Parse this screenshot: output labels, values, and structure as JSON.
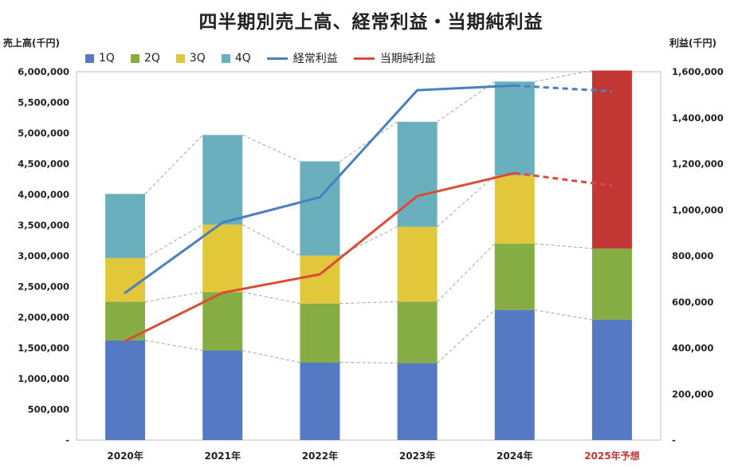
{
  "chart_data": {
    "type": "bar",
    "title": "四半期別売上高、経常利益・当期純利益",
    "ylabel_left": "売上高(千円)",
    "ylabel_right": "利益(千円)",
    "categories": [
      "2020年",
      "2021年",
      "2022年",
      "2023年",
      "2024年",
      "2025年予想"
    ],
    "stacked": true,
    "ylim_left": [
      0,
      6000000
    ],
    "yticks_left": [
      "-",
      "500,000",
      "1,000,000",
      "1,500,000",
      "2,000,000",
      "2,500,000",
      "3,000,000",
      "3,500,000",
      "4,000,000",
      "4,500,000",
      "5,000,000",
      "5,500,000",
      "6,000,000"
    ],
    "ylim_right": [
      0,
      1600000
    ],
    "yticks_right": [
      "-",
      "200,000",
      "400,000",
      "600,000",
      "800,000",
      "1,000,000",
      "1,200,000",
      "1,400,000",
      "1,600,000"
    ],
    "series": [
      {
        "name": "1Q",
        "type": "bar",
        "color": "#5579c2",
        "values": [
          1625000,
          1460000,
          1265000,
          1255000,
          2120000,
          1960000
        ]
      },
      {
        "name": "2Q",
        "type": "bar",
        "color": "#85ad44",
        "values": [
          630000,
          950000,
          960000,
          1000000,
          1080000,
          1160000
        ]
      },
      {
        "name": "3Q",
        "type": "bar",
        "color": "#e3c73a",
        "values": [
          710000,
          1100000,
          780000,
          1220000,
          1110000,
          null
        ]
      },
      {
        "name": "4Q",
        "type": "bar",
        "color": "#6aafbd",
        "values": [
          1045000,
          1460000,
          1535000,
          1710000,
          1530000,
          null
        ]
      },
      {
        "name": "経常利益",
        "type": "line",
        "axis": "right",
        "color": "#4a7fc0",
        "values": [
          640000,
          945000,
          1055000,
          1520000,
          1540000,
          1515000
        ],
        "dashed_last_segment": true
      },
      {
        "name": "当期純利益",
        "type": "line",
        "axis": "right",
        "color": "#dc4b35",
        "values": [
          430000,
          640000,
          720000,
          1060000,
          1160000,
          1105000
        ],
        "dashed_last_segment": true
      }
    ],
    "forecast_bar": {
      "category": "2025年予想",
      "color": "#c23633",
      "base": 3120000,
      "top": 6020000
    },
    "forecast_label_color": "#c23633",
    "grid": false,
    "legend_position": "top-left"
  }
}
